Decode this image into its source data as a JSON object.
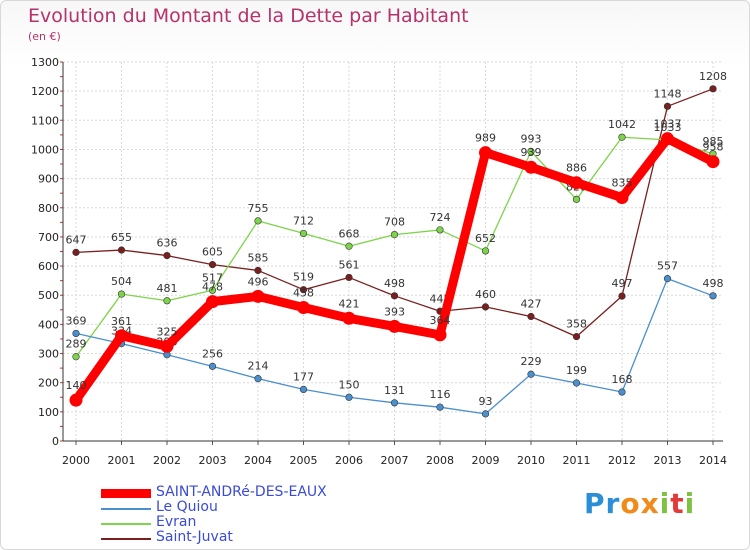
{
  "header": {
    "title": "Evolution du Montant de la Dette par Habitant",
    "unit": "(en €)"
  },
  "logo": {
    "text": "Proxiti",
    "letters": [
      "P",
      "r",
      "o",
      "x",
      "i",
      "t",
      "i"
    ],
    "colors": [
      "#2a8fd8",
      "#2a8fd8",
      "#f08a1a",
      "#f08a1a",
      "#7dc242",
      "#e23a3a",
      "#7dc242"
    ]
  },
  "chart_data": {
    "type": "line",
    "title": "Evolution du Montant de la Dette par Habitant",
    "ylabel": "(en €)",
    "xlabel": "",
    "ylim": [
      0,
      1300
    ],
    "yticks": [
      0,
      100,
      200,
      300,
      400,
      500,
      600,
      700,
      800,
      900,
      1000,
      1100,
      1200,
      1300
    ],
    "x": [
      "2000",
      "2001",
      "2002",
      "2003",
      "2004",
      "2005",
      "2006",
      "2007",
      "2008",
      "2009",
      "2010",
      "2011",
      "2012",
      "2013",
      "2014"
    ],
    "grid": true,
    "legend_position": "bottom-left",
    "series": [
      {
        "name": "Saint-Juvat",
        "color": "#7a1f1f",
        "values": [
          647,
          655,
          636,
          605,
          585,
          519,
          561,
          498,
          445,
          460,
          427,
          358,
          497,
          1148,
          1208
        ]
      },
      {
        "name": "Evran",
        "color": "#7dd44a",
        "values": [
          289,
          504,
          481,
          517,
          755,
          712,
          668,
          708,
          724,
          652,
          993,
          829,
          1042,
          1033,
          985
        ]
      },
      {
        "name": "Le Quiou",
        "color": "#4a8fce",
        "values": [
          369,
          334,
          296,
          256,
          214,
          177,
          150,
          131,
          116,
          93,
          229,
          199,
          168,
          557,
          498
        ]
      },
      {
        "name": "SAINT-ANDRé-DES-EAUX",
        "color": "#ff0000",
        "values": [
          140,
          361,
          325,
          478,
          496,
          458,
          421,
          393,
          364,
          989,
          939,
          886,
          835,
          1037,
          958
        ]
      }
    ]
  },
  "legend": [
    {
      "name": "SAINT-ANDRé-DES-EAUX",
      "color": "#ff0000",
      "thick": true
    },
    {
      "name": "Le Quiou",
      "color": "#4a8fce",
      "thick": false
    },
    {
      "name": "Evran",
      "color": "#7dd44a",
      "thick": false
    },
    {
      "name": "Saint-Juvat",
      "color": "#7a1f1f",
      "thick": false
    }
  ]
}
